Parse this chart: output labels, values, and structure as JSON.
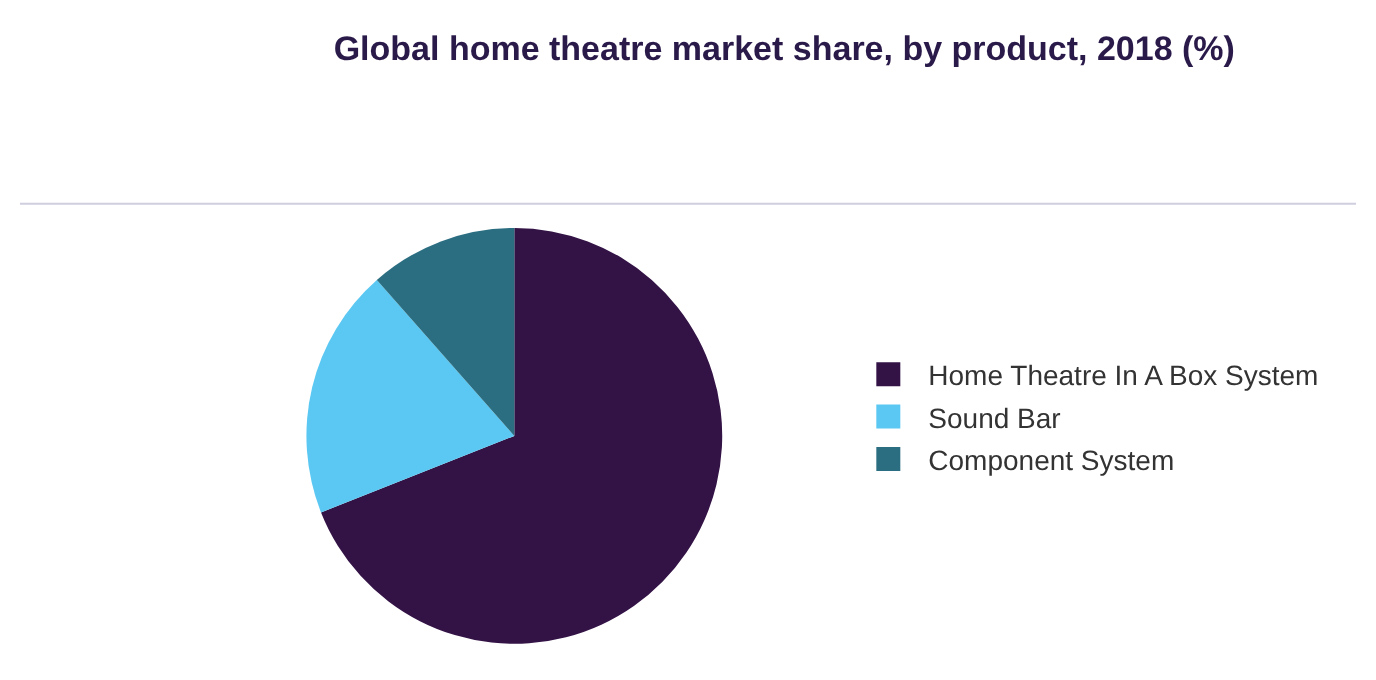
{
  "chart_data": {
    "type": "pie",
    "title": "Global home theatre market share, by product, 2018 (%)",
    "categories": [
      "Home Theatre In A Box System",
      "Sound Bar",
      "Component System"
    ],
    "values": [
      69,
      19.5,
      11.5
    ],
    "colors": [
      "#331245",
      "#5ac8f2",
      "#2b6e82"
    ],
    "legend": "right"
  }
}
